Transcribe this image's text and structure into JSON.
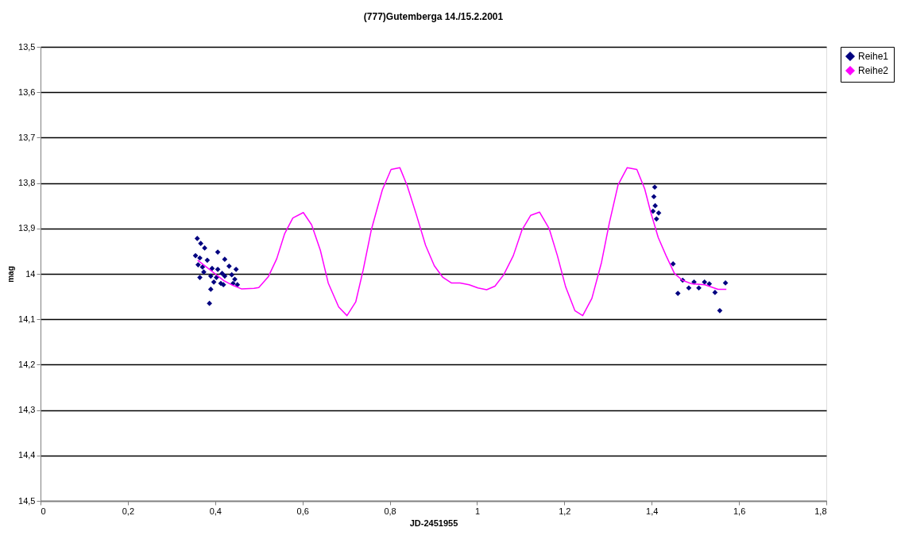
{
  "chart_data": {
    "type": "scatter",
    "title": "(777)Gutemberga 14./15.2.2001",
    "xlabel": "JD-2451955",
    "ylabel": "mag",
    "xlim": [
      0,
      1.8
    ],
    "ylim": [
      14.5,
      13.5
    ],
    "xticks": [
      0,
      {
        "value": 0.2,
        "label": "0,2"
      },
      {
        "value": 0.4,
        "label": "0,4"
      },
      {
        "value": 0.6,
        "label": "0,6"
      },
      {
        "value": 0.8,
        "label": "0,8"
      },
      1,
      {
        "value": 1.2,
        "label": "1,2"
      },
      {
        "value": 1.4,
        "label": "1,4"
      },
      {
        "value": 1.6,
        "label": "1,6"
      },
      {
        "value": 1.8,
        "label": "1,8"
      }
    ],
    "yticks": [
      {
        "value": 13.5,
        "label": "13,5"
      },
      {
        "value": 13.6,
        "label": "13,6"
      },
      {
        "value": 13.7,
        "label": "13,7"
      },
      {
        "value": 13.8,
        "label": "13,8"
      },
      {
        "value": 13.9,
        "label": "13,9"
      },
      14,
      {
        "value": 14.1,
        "label": "14,1"
      },
      {
        "value": 14.2,
        "label": "14,2"
      },
      {
        "value": 14.3,
        "label": "14,3"
      },
      {
        "value": 14.4,
        "label": "14,4"
      },
      {
        "value": 14.5,
        "label": "14,5"
      }
    ],
    "grid": "y",
    "legend": "right",
    "series": [
      {
        "name": "Reihe1",
        "marker": "diamond",
        "color": "#000080",
        "x": [
          0.359,
          0.367,
          0.376,
          0.406,
          0.355,
          0.365,
          0.382,
          0.422,
          0.361,
          0.371,
          0.393,
          0.432,
          0.448,
          0.374,
          0.406,
          0.416,
          0.365,
          0.39,
          0.403,
          0.422,
          0.438,
          0.445,
          0.397,
          0.413,
          0.441,
          0.451,
          0.39,
          0.419,
          0.387,
          1.407,
          1.405,
          1.408,
          1.403,
          1.416,
          1.411,
          1.449,
          1.471,
          1.46,
          1.485,
          1.497,
          1.508,
          1.521,
          1.532,
          1.545,
          1.556,
          1.569
        ],
        "values": [
          13.922,
          13.933,
          13.943,
          13.952,
          13.96,
          13.965,
          13.97,
          13.968,
          13.98,
          13.985,
          13.988,
          13.983,
          13.99,
          13.996,
          13.99,
          13.999,
          14.008,
          14.005,
          14.008,
          14.005,
          14.002,
          14.012,
          14.018,
          14.021,
          14.021,
          14.024,
          14.034,
          14.024,
          14.065,
          13.809,
          13.83,
          13.85,
          13.862,
          13.866,
          13.879,
          13.978,
          14.014,
          14.043,
          14.031,
          14.018,
          14.031,
          14.018,
          14.022,
          14.041,
          14.081,
          14.02
        ]
      },
      {
        "name": "Reihe2",
        "type": "line",
        "color": "#ff00ff",
        "x": [
          0.36,
          0.38,
          0.4,
          0.42,
          0.44,
          0.46,
          0.489,
          0.5,
          0.522,
          0.541,
          0.559,
          0.578,
          0.602,
          0.621,
          0.641,
          0.659,
          0.683,
          0.702,
          0.722,
          0.739,
          0.758,
          0.783,
          0.803,
          0.823,
          0.84,
          0.862,
          0.882,
          0.902,
          0.921,
          0.941,
          0.961,
          0.982,
          1.002,
          1.022,
          1.041,
          1.061,
          1.083,
          1.103,
          1.123,
          1.143,
          1.165,
          1.184,
          1.203,
          1.224,
          1.242,
          1.263,
          1.285,
          1.303,
          1.323,
          1.344,
          1.366,
          1.384,
          1.398,
          1.415,
          1.433,
          1.452,
          1.47,
          1.492,
          1.522,
          1.552,
          1.571
        ],
        "values": [
          13.97,
          13.985,
          14.0,
          14.015,
          14.025,
          14.033,
          14.032,
          14.03,
          14.006,
          13.967,
          13.912,
          13.877,
          13.865,
          13.892,
          13.948,
          14.02,
          14.073,
          14.092,
          14.062,
          13.992,
          13.902,
          13.815,
          13.77,
          13.766,
          13.806,
          13.873,
          13.937,
          13.982,
          14.007,
          14.02,
          14.02,
          14.024,
          14.031,
          14.035,
          14.027,
          14.002,
          13.96,
          13.903,
          13.871,
          13.864,
          13.9,
          13.96,
          14.029,
          14.081,
          14.092,
          14.054,
          13.975,
          13.888,
          13.804,
          13.766,
          13.77,
          13.813,
          13.865,
          13.92,
          13.96,
          13.999,
          14.014,
          14.022,
          14.024,
          14.034,
          14.034
        ]
      }
    ]
  }
}
